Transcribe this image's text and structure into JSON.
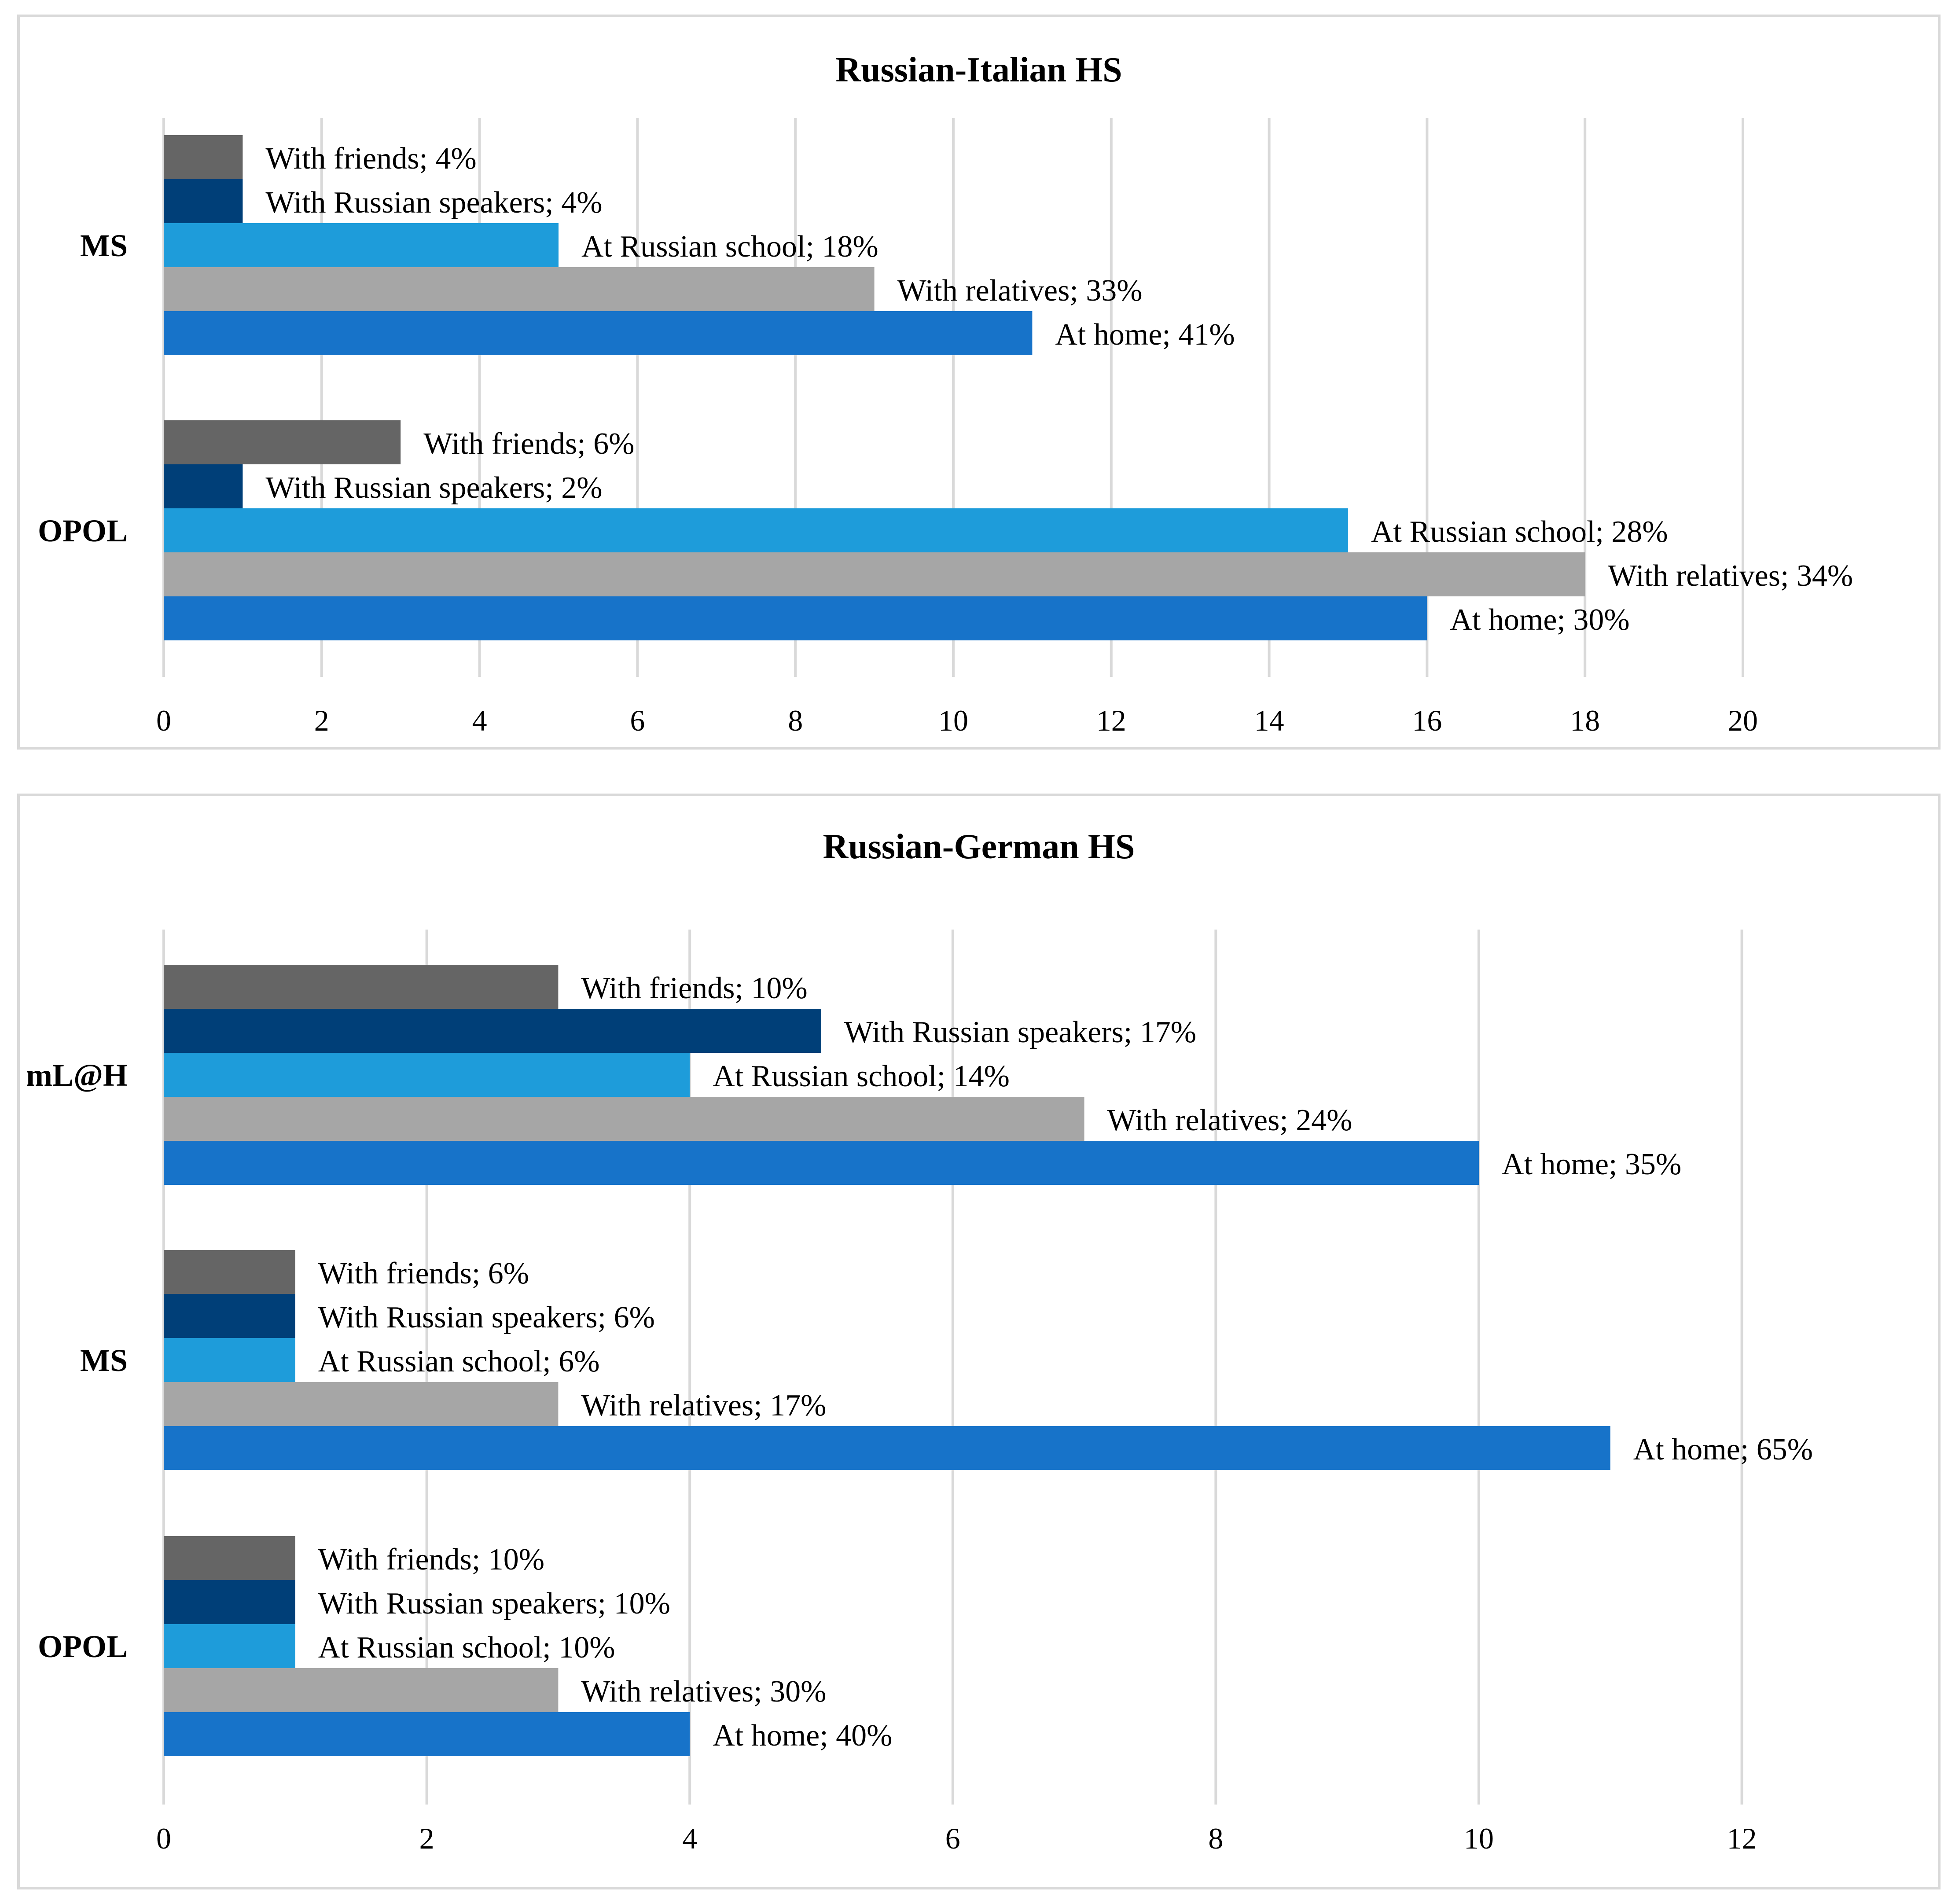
{
  "colors": {
    "With friends": "#656565",
    "With Russian speakers": "#003f78",
    "At Russian school": "#1e9cda",
    "With relatives": "#a6a6a6",
    "At home": "#1773c9"
  },
  "chart_data": [
    {
      "type": "bar",
      "orientation": "horizontal",
      "title": "Russian-Italian HS",
      "xlim": [
        0,
        22
      ],
      "xticks": [
        0,
        2,
        4,
        6,
        8,
        10,
        12,
        14,
        16,
        18,
        20
      ],
      "grid": true,
      "groups": [
        {
          "name": "MS",
          "bars": [
            {
              "series": "With friends",
              "value": 1,
              "label": "With friends; 4%"
            },
            {
              "series": "With Russian speakers",
              "value": 1,
              "label": "With Russian speakers; 4%"
            },
            {
              "series": "At Russian school",
              "value": 5,
              "label": "At Russian school; 18%"
            },
            {
              "series": "With relatives",
              "value": 9,
              "label": "With relatives; 33%"
            },
            {
              "series": "At home",
              "value": 11,
              "label": "At home; 41%"
            }
          ]
        },
        {
          "name": "OPOL",
          "bars": [
            {
              "series": "With friends",
              "value": 3,
              "label": "With friends; 6%"
            },
            {
              "series": "With Russian speakers",
              "value": 1,
              "label": "With Russian speakers; 2%"
            },
            {
              "series": "At Russian school",
              "value": 15,
              "label": "At Russian school; 28%"
            },
            {
              "series": "With relatives",
              "value": 18,
              "label": "With relatives; 34%"
            },
            {
              "series": "At home",
              "value": 16,
              "label": "At home; 30%"
            }
          ]
        }
      ]
    },
    {
      "type": "bar",
      "orientation": "horizontal",
      "title": "Russian-German HS",
      "xlim": [
        0,
        13.5
      ],
      "xticks": [
        0,
        2,
        4,
        6,
        8,
        10,
        12
      ],
      "grid": true,
      "groups": [
        {
          "name": "mL@H",
          "bars": [
            {
              "series": "With friends",
              "value": 3,
              "label": "With friends; 10%"
            },
            {
              "series": "With Russian speakers",
              "value": 5,
              "label": "With Russian speakers; 17%"
            },
            {
              "series": "At Russian school",
              "value": 4,
              "label": "At Russian school; 14%"
            },
            {
              "series": "With relatives",
              "value": 7,
              "label": "With relatives; 24%"
            },
            {
              "series": "At home",
              "value": 10,
              "label": "At home; 35%"
            }
          ]
        },
        {
          "name": "MS",
          "bars": [
            {
              "series": "With friends",
              "value": 1,
              "label": "With friends; 6%"
            },
            {
              "series": "With Russian speakers",
              "value": 1,
              "label": "With Russian speakers; 6%"
            },
            {
              "series": "At Russian school",
              "value": 1,
              "label": "At Russian school; 6%"
            },
            {
              "series": "With relatives",
              "value": 3,
              "label": "With relatives; 17%"
            },
            {
              "series": "At home",
              "value": 11,
              "label": "At home; 65%"
            }
          ]
        },
        {
          "name": "OPOL",
          "bars": [
            {
              "series": "With friends",
              "value": 1,
              "label": "With friends; 10%"
            },
            {
              "series": "With Russian speakers",
              "value": 1,
              "label": "With Russian speakers; 10%"
            },
            {
              "series": "At Russian school",
              "value": 1,
              "label": "At Russian school; 10%"
            },
            {
              "series": "With relatives",
              "value": 3,
              "label": "With relatives; 30%"
            },
            {
              "series": "At home",
              "value": 4,
              "label": "At home; 40%"
            }
          ]
        }
      ]
    }
  ]
}
